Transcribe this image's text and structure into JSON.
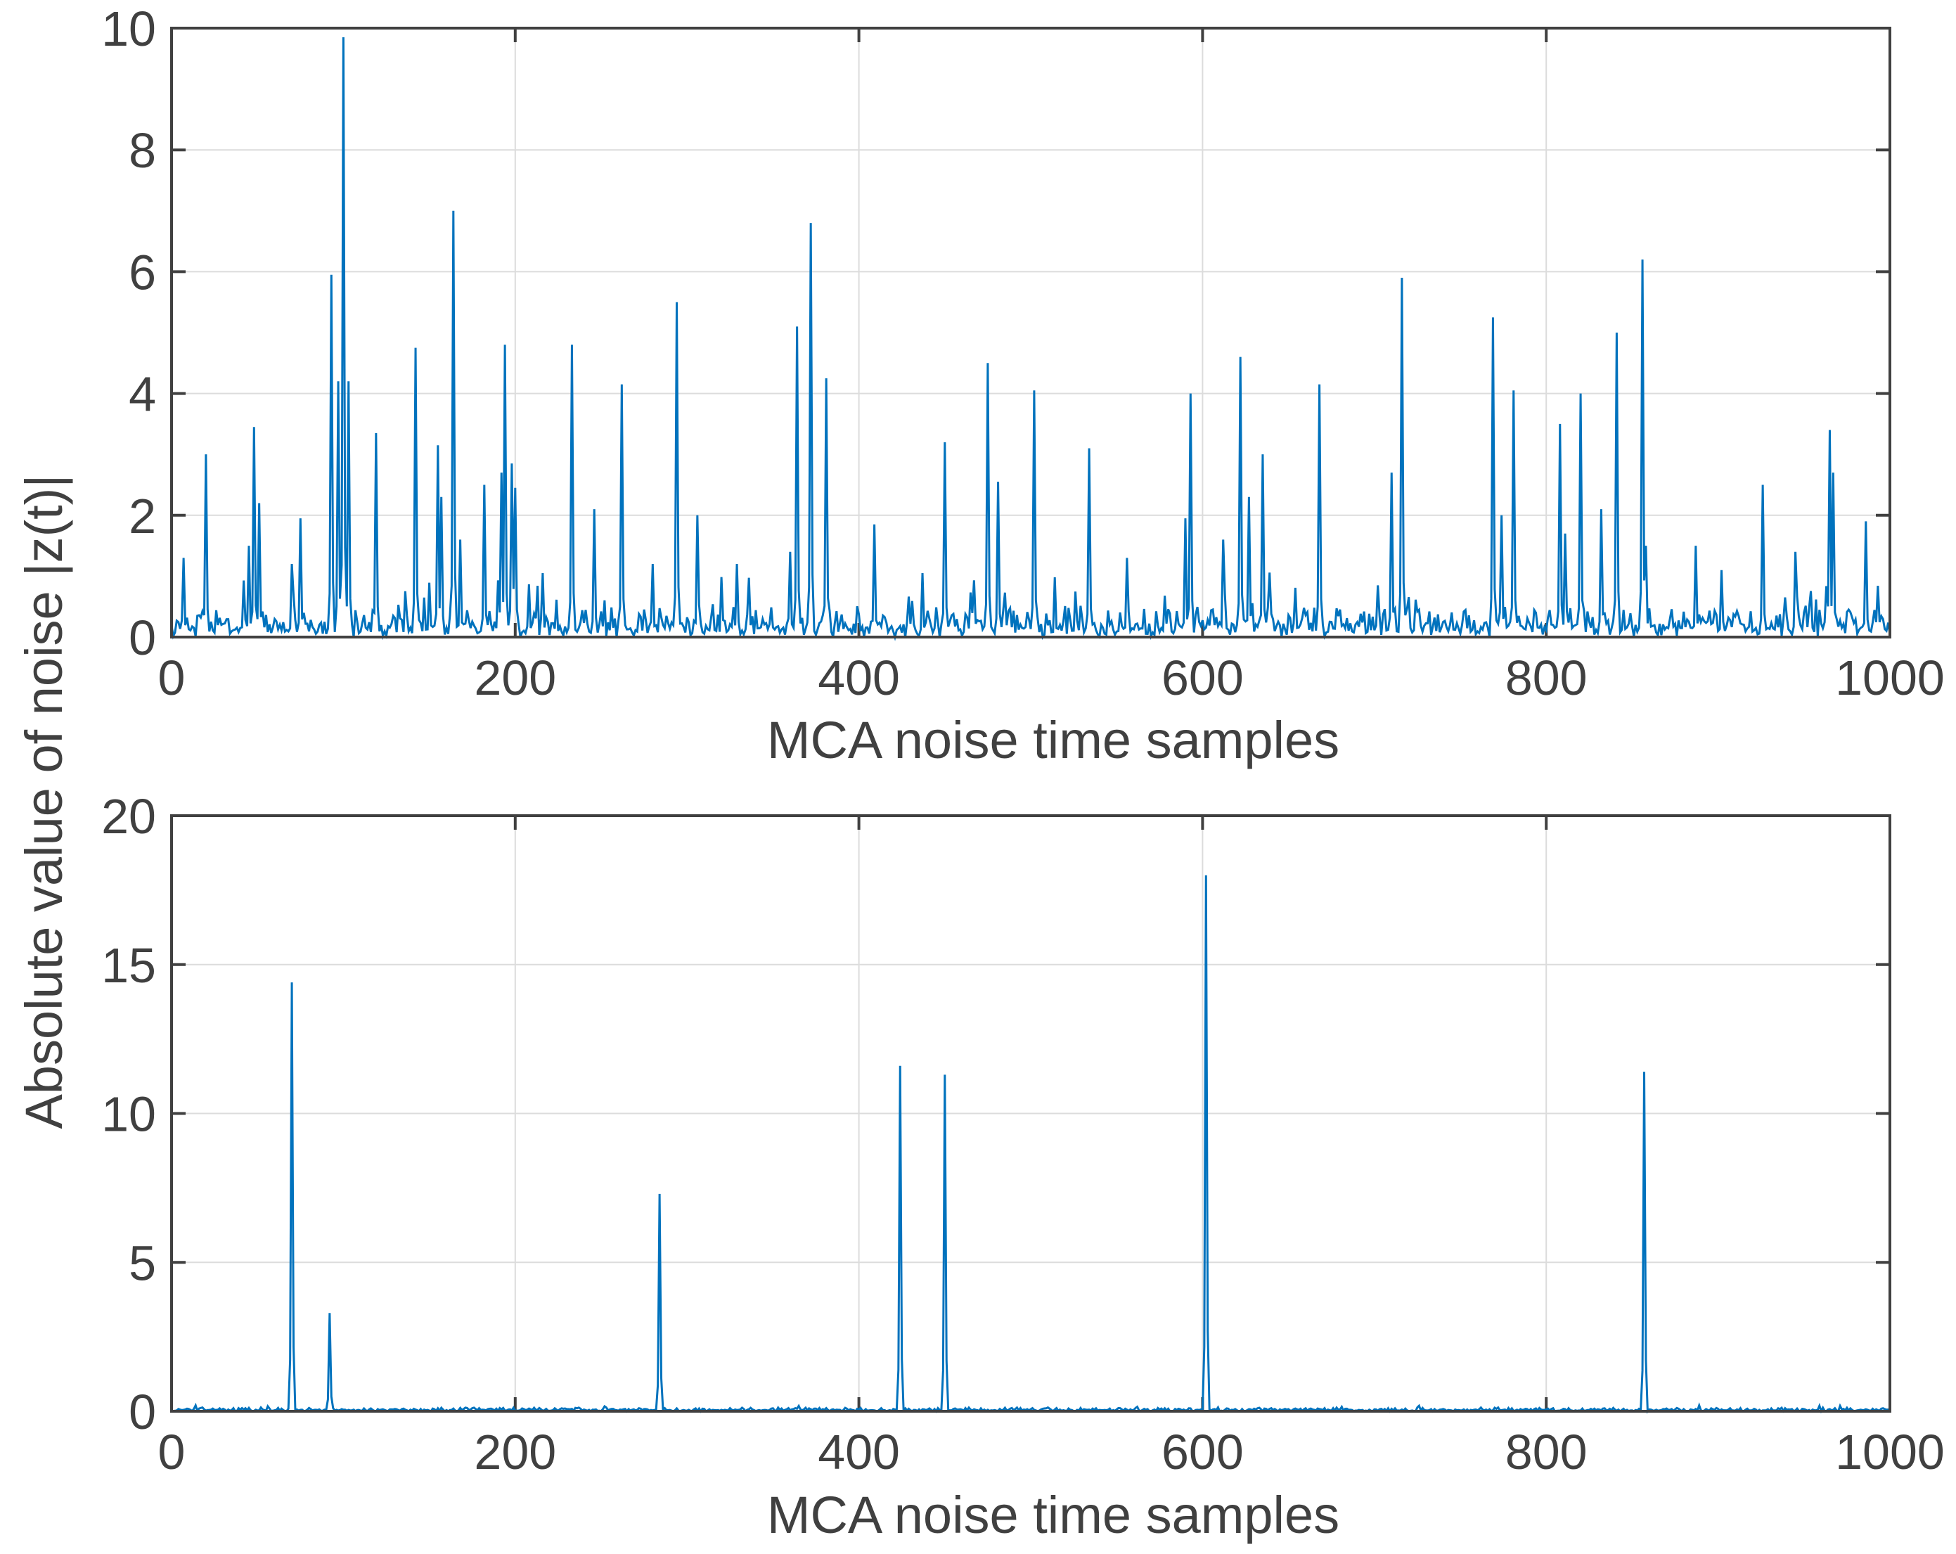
{
  "figure": {
    "ylabel_shared": "Absolute value of noise |z(t)|",
    "line_color": "#0072BD",
    "axis_color": "#404040",
    "grid_color": "#DCDCDC"
  },
  "chart_data": [
    {
      "type": "line",
      "name": "top",
      "xlabel": "MCA noise time samples",
      "ylabel": "",
      "xlim": [
        0,
        1000
      ],
      "ylim": [
        0,
        10
      ],
      "grid": true,
      "xticks": [
        0,
        200,
        400,
        600,
        800,
        1000
      ],
      "xtick_labels": [
        "0",
        "200",
        "400",
        "600",
        "800",
        "1000"
      ],
      "yticks": [
        0,
        2,
        4,
        6,
        8,
        10
      ],
      "ytick_labels": [
        "0",
        "2",
        "4",
        "6",
        "8",
        "10"
      ],
      "baseline": {
        "seed": 7,
        "level": 0.25,
        "spread": 0.35,
        "burst_level": 0.75,
        "burst_prob": 0.05
      },
      "series": [
        {
          "name": "|z(t)|",
          "spikes": [
            [
              7,
              1.3
            ],
            [
              20,
              3.0
            ],
            [
              45,
              1.5
            ],
            [
              48,
              3.45
            ],
            [
              51,
              2.2
            ],
            [
              70,
              1.2
            ],
            [
              75,
              1.95
            ],
            [
              93,
              5.95
            ],
            [
              97,
              4.2
            ],
            [
              100,
              9.85
            ],
            [
              103,
              4.2
            ],
            [
              119,
              3.35
            ],
            [
              142,
              4.75
            ],
            [
              155,
              3.15
            ],
            [
              157,
              2.3
            ],
            [
              164,
              7.0
            ],
            [
              168,
              1.6
            ],
            [
              182,
              2.5
            ],
            [
              192,
              2.7
            ],
            [
              194,
              4.8
            ],
            [
              198,
              2.85
            ],
            [
              200,
              2.45
            ],
            [
              216,
              1.05
            ],
            [
              233,
              4.8
            ],
            [
              246,
              2.1
            ],
            [
              262,
              4.15
            ],
            [
              280,
              1.2
            ],
            [
              294,
              5.5
            ],
            [
              306,
              2.0
            ],
            [
              329,
              1.2
            ],
            [
              360,
              1.4
            ],
            [
              364,
              5.1
            ],
            [
              372,
              6.8
            ],
            [
              381,
              4.25
            ],
            [
              409,
              1.85
            ],
            [
              437,
              1.05
            ],
            [
              450,
              3.2
            ],
            [
              475,
              4.5
            ],
            [
              481,
              2.55
            ],
            [
              502,
              4.05
            ],
            [
              534,
              3.1
            ],
            [
              556,
              1.3
            ],
            [
              590,
              1.95
            ],
            [
              593,
              4.0
            ],
            [
              612,
              1.6
            ],
            [
              622,
              4.6
            ],
            [
              627,
              2.3
            ],
            [
              635,
              3.0
            ],
            [
              668,
              4.15
            ],
            [
              710,
              2.7
            ],
            [
              716,
              5.9
            ],
            [
              769,
              5.25
            ],
            [
              774,
              2.0
            ],
            [
              781,
              4.05
            ],
            [
              808,
              3.5
            ],
            [
              811,
              1.7
            ],
            [
              820,
              4.0
            ],
            [
              832,
              2.1
            ],
            [
              841,
              5.0
            ],
            [
              856,
              6.2
            ],
            [
              858,
              1.5
            ],
            [
              887,
              1.5
            ],
            [
              902,
              1.1
            ],
            [
              926,
              2.5
            ],
            [
              945,
              1.4
            ],
            [
              965,
              3.4
            ],
            [
              967,
              2.7
            ],
            [
              986,
              1.9
            ]
          ]
        }
      ]
    },
    {
      "type": "line",
      "name": "bottom",
      "xlabel": "MCA noise time samples",
      "ylabel": "",
      "xlim": [
        0,
        1000
      ],
      "ylim": [
        0,
        20
      ],
      "grid": true,
      "xticks": [
        0,
        200,
        400,
        600,
        800,
        1000
      ],
      "xtick_labels": [
        "0",
        "200",
        "400",
        "600",
        "800",
        "1000"
      ],
      "yticks": [
        0,
        5,
        10,
        15,
        20
      ],
      "ytick_labels": [
        "0",
        "5",
        "10",
        "15",
        "20"
      ],
      "baseline": {
        "seed": 13,
        "level": 0.06,
        "spread": 0.1,
        "burst_level": 0.15,
        "burst_prob": 0.02
      },
      "series": [
        {
          "name": "|z(t)|",
          "spikes": [
            [
              70,
              14.4
            ],
            [
              92,
              3.3
            ],
            [
              284,
              7.3
            ],
            [
              424,
              11.6
            ],
            [
              450,
              11.3
            ],
            [
              602,
              18.0
            ],
            [
              857,
              11.4
            ]
          ]
        }
      ]
    }
  ]
}
